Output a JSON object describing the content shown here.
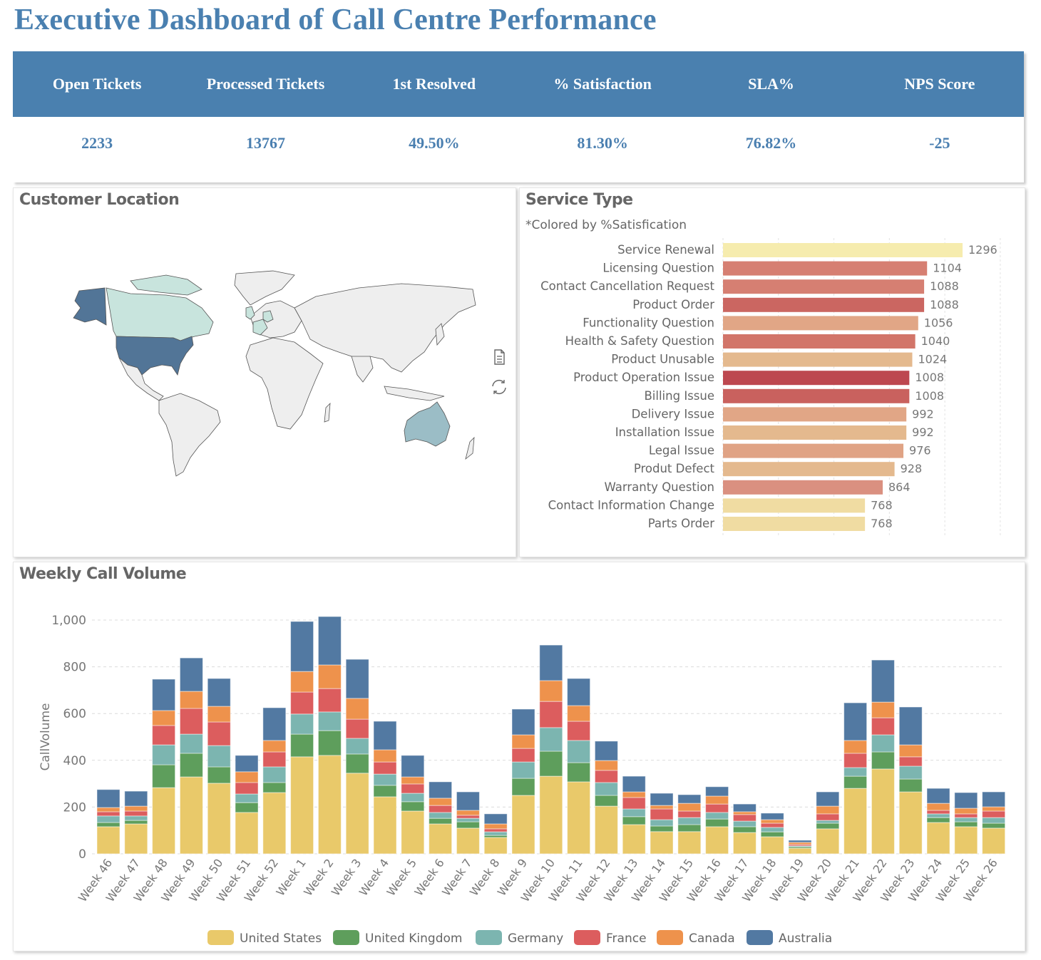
{
  "page": {
    "title": "Executive Dashboard of Call Centre Performance"
  },
  "kpis": [
    {
      "label": "Open Tickets",
      "value": "2233"
    },
    {
      "label": "Processed Tickets",
      "value": "13767"
    },
    {
      "label": "1st Resolved",
      "value": "49.50%"
    },
    {
      "label": "% Satisfaction",
      "value": "81.30%"
    },
    {
      "label": "SLA%",
      "value": "76.82%"
    },
    {
      "label": "NPS Score",
      "value": "-25"
    }
  ],
  "location": {
    "title": "Customer Location",
    "icons": {
      "data_view": "document-icon",
      "refresh": "refresh-icon"
    },
    "highlighted_countries": [
      {
        "name": "United States",
        "color": "#527597"
      },
      {
        "name": "Canada",
        "color": "#c8e4dd"
      },
      {
        "name": "Australia",
        "color": "#9bbdc6"
      },
      {
        "name": "United Kingdom",
        "color": "#c8e4dd"
      },
      {
        "name": "France",
        "color": "#c8e4dd"
      },
      {
        "name": "Germany",
        "color": "#c8e4dd"
      }
    ],
    "default_country_color": "#eeeeee"
  },
  "chart_data": [
    {
      "type": "bar",
      "orientation": "horizontal",
      "title": "Service Type",
      "subtitle": "*Colored by %Satisfication",
      "categories": [
        "Service Renewal",
        "Licensing Question",
        "Contact Cancellation Request",
        "Product Order",
        "Functionality Question",
        "Health & Safety Question",
        "Product Unusable",
        "Product Operation Issue",
        "Billing Issue",
        "Delivery Issue",
        "Installation Issue",
        "Legal Issue",
        "Produt Defect",
        "Warranty Question",
        "Contact Information Change",
        "Parts Order"
      ],
      "values": [
        1296,
        1104,
        1088,
        1088,
        1056,
        1040,
        1024,
        1008,
        1008,
        992,
        992,
        976,
        928,
        864,
        768,
        768
      ],
      "colors": [
        "#f6ecae",
        "#d67f72",
        "#d67f72",
        "#cb6661",
        "#e1a686",
        "#d27569",
        "#e4b98e",
        "#bd4850",
        "#c9615e",
        "#e1a686",
        "#e4b98e",
        "#e0a385",
        "#e4b98e",
        "#da9080",
        "#f0dca2",
        "#f0dca2"
      ],
      "xlim": [
        0,
        1500
      ],
      "grid": true
    },
    {
      "type": "bar",
      "stacked": true,
      "title": "Weekly Call Volume",
      "xlabel": "",
      "ylabel": "CallVolume",
      "ylim": [
        0,
        1000
      ],
      "yticks": [
        "0",
        "200",
        "400",
        "600",
        "800",
        "1,000"
      ],
      "grid": true,
      "legend": "bottom-center",
      "categories": [
        "Week 46",
        "Week 47",
        "Week 48",
        "Week 49",
        "Week 50",
        "Week 51",
        "Week 52",
        "Week 1",
        "Week 2",
        "Week 3",
        "Week 4",
        "Week 5",
        "Week 6",
        "Week 7",
        "Week 8",
        "Week 9",
        "Week 10",
        "Week 11",
        "Week 12",
        "Week 13",
        "Week 14",
        "Week 15",
        "Week 16",
        "Week 17",
        "Week 18",
        "Week 19",
        "Week 20",
        "Week 21",
        "Week 22",
        "Week 23",
        "Week 24",
        "Week 25",
        "Week 26"
      ],
      "series": [
        {
          "name": "United States",
          "color": "#e9c96a",
          "values": [
            116,
            128,
            283,
            329,
            302,
            177,
            262,
            415,
            421,
            345,
            244,
            183,
            128,
            110,
            70,
            250,
            332,
            308,
            204,
            125,
            95,
            95,
            116,
            91,
            73,
            24,
            107,
            280,
            363,
            265,
            134,
            116,
            110
          ]
        },
        {
          "name": "United Kingdom",
          "color": "#5e9e5c",
          "values": [
            18,
            15,
            98,
            101,
            70,
            42,
            43,
            97,
            106,
            82,
            49,
            40,
            24,
            27,
            9,
            73,
            107,
            82,
            46,
            34,
            24,
            30,
            33,
            25,
            21,
            6,
            24,
            52,
            73,
            55,
            21,
            21,
            21
          ]
        },
        {
          "name": "Germany",
          "color": "#7cb5b0",
          "values": [
            28,
            19,
            85,
            82,
            91,
            37,
            67,
            86,
            80,
            67,
            48,
            36,
            25,
            15,
            15,
            70,
            101,
            95,
            55,
            33,
            27,
            30,
            28,
            24,
            19,
            4,
            12,
            37,
            73,
            55,
            16,
            18,
            24
          ]
        },
        {
          "name": "France",
          "color": "#dc5d5e",
          "values": [
            18,
            21,
            83,
            110,
            101,
            49,
            64,
            94,
            100,
            82,
            52,
            40,
            30,
            13,
            13,
            58,
            112,
            82,
            52,
            49,
            46,
            28,
            36,
            28,
            18,
            6,
            28,
            61,
            73,
            40,
            15,
            16,
            28
          ]
        },
        {
          "name": "Canada",
          "color": "#ee924c",
          "values": [
            18,
            21,
            64,
            73,
            67,
            46,
            49,
            88,
            101,
            89,
            52,
            30,
            31,
            21,
            21,
            58,
            89,
            67,
            42,
            24,
            15,
            33,
            34,
            12,
            15,
            9,
            33,
            55,
            67,
            51,
            30,
            24,
            18
          ]
        },
        {
          "name": "Australia",
          "color": "#5279a2",
          "values": [
            77,
            64,
            134,
            143,
            119,
            70,
            140,
            214,
            207,
            167,
            122,
            92,
            70,
            79,
            43,
            110,
            152,
            116,
            83,
            67,
            52,
            37,
            40,
            33,
            28,
            9,
            61,
            161,
            180,
            162,
            64,
            67,
            64
          ]
        }
      ]
    }
  ],
  "volume": {
    "title": "Weekly Call Volume"
  },
  "service": {
    "title": "Service Type",
    "subtitle": "*Colored by %Satisfication"
  }
}
